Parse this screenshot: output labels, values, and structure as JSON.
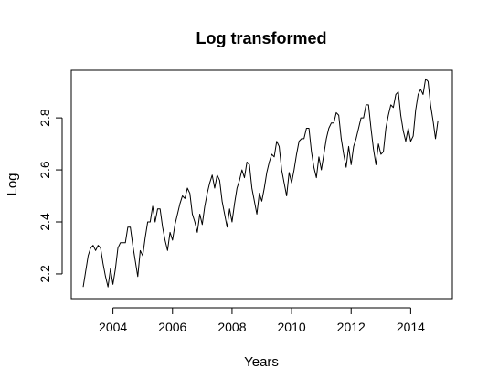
{
  "chart_data": {
    "type": "line",
    "title": "Log transformed",
    "xlabel": "Years",
    "ylabel": "Log",
    "xlim": [
      2002.6,
      2015.4
    ],
    "ylim": [
      2.105,
      2.983
    ],
    "x_ticks": [
      2004,
      2006,
      2008,
      2010,
      2012,
      2014
    ],
    "x_tick_labels": [
      "2004",
      "2006",
      "2008",
      "2010",
      "2012",
      "2014"
    ],
    "y_ticks": [
      2.2,
      2.4,
      2.6,
      2.8
    ],
    "y_tick_labels": [
      "2.2",
      "2.4",
      "2.6",
      "2.8"
    ],
    "grid": false,
    "legend": "none",
    "line_color": "#000000",
    "series": [
      {
        "x_start": "2003-01",
        "frequency": "monthly",
        "values": [
          2.15,
          2.21,
          2.27,
          2.3,
          2.31,
          2.29,
          2.31,
          2.3,
          2.24,
          2.19,
          2.15,
          2.22,
          2.16,
          2.22,
          2.3,
          2.32,
          2.32,
          2.32,
          2.38,
          2.38,
          2.31,
          2.25,
          2.19,
          2.29,
          2.27,
          2.34,
          2.4,
          2.4,
          2.46,
          2.4,
          2.45,
          2.45,
          2.38,
          2.33,
          2.29,
          2.36,
          2.33,
          2.39,
          2.43,
          2.47,
          2.5,
          2.49,
          2.53,
          2.51,
          2.43,
          2.4,
          2.36,
          2.43,
          2.39,
          2.46,
          2.51,
          2.55,
          2.58,
          2.53,
          2.58,
          2.56,
          2.48,
          2.43,
          2.38,
          2.45,
          2.4,
          2.47,
          2.53,
          2.56,
          2.6,
          2.57,
          2.63,
          2.62,
          2.53,
          2.48,
          2.43,
          2.51,
          2.48,
          2.53,
          2.59,
          2.63,
          2.66,
          2.65,
          2.71,
          2.69,
          2.6,
          2.55,
          2.5,
          2.59,
          2.55,
          2.6,
          2.66,
          2.71,
          2.72,
          2.72,
          2.76,
          2.76,
          2.67,
          2.61,
          2.57,
          2.65,
          2.6,
          2.66,
          2.72,
          2.76,
          2.78,
          2.78,
          2.82,
          2.81,
          2.72,
          2.66,
          2.61,
          2.69,
          2.62,
          2.69,
          2.72,
          2.76,
          2.8,
          2.8,
          2.85,
          2.85,
          2.76,
          2.68,
          2.62,
          2.7,
          2.66,
          2.67,
          2.76,
          2.81,
          2.85,
          2.84,
          2.89,
          2.9,
          2.81,
          2.75,
          2.71,
          2.76,
          2.71,
          2.73,
          2.83,
          2.89,
          2.91,
          2.89,
          2.95,
          2.94,
          2.85,
          2.79,
          2.72,
          2.79
        ]
      }
    ]
  }
}
